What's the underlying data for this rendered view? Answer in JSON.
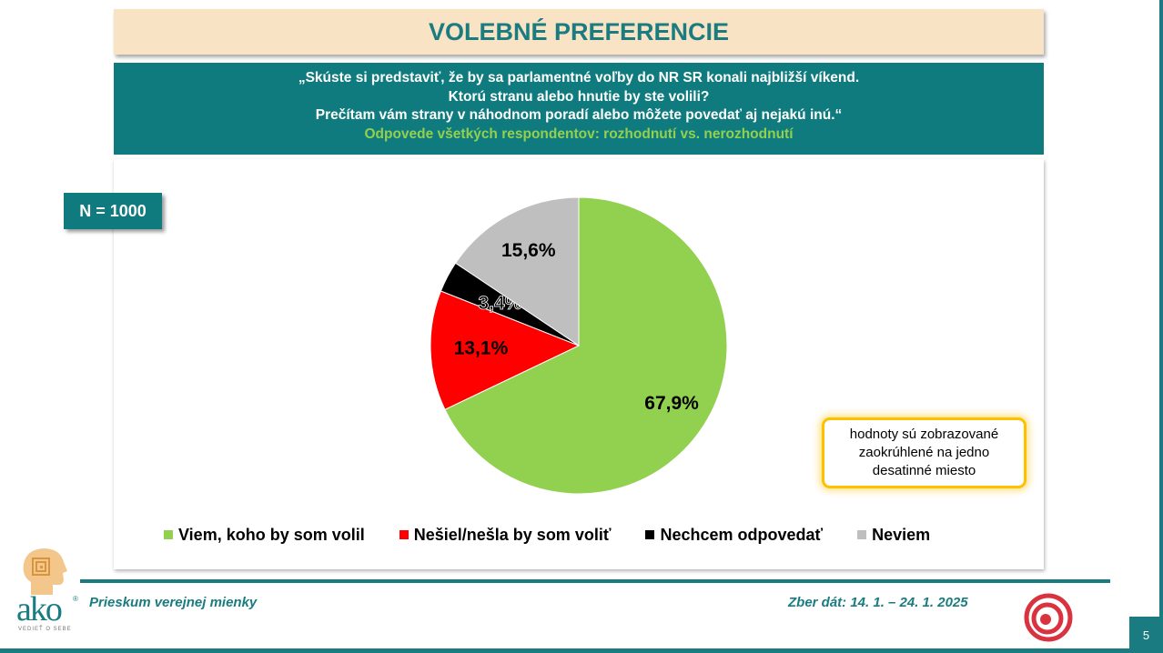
{
  "title": "VOLEBNÉ PREFERENCIE",
  "question": {
    "line1": "„Skúste si predstaviť, že by sa parlamentné voľby do NR SR konali najbližší víkend.",
    "line2": "Ktorú stranu alebo hnutie by ste volili?",
    "line3": "Prečítam vám strany v náhodnom poradí alebo môžete povedať aj nejakú inú.“",
    "subtitle": "Odpovede všetkých respondentov: rozhodnutí vs. nerozhodnutí"
  },
  "sample_size": "N = 1000",
  "note": "hodnoty sú zobrazované zaokrúhlené na jedno desatinné miesto",
  "footer": {
    "left": "Prieskum verejnej mienky",
    "right": "Zber dát: 14. 1. – 24. 1. 2025",
    "page_number": "5"
  },
  "logo": {
    "brand": "ako",
    "reg": "®",
    "tagline": "VEDIEŤ O SEBE",
    "ako_icon": "profile-head-maze-icon",
    "swirl_icon": "red-swirl-icon"
  },
  "chart_data": {
    "type": "pie",
    "title": "",
    "start_angle_deg": 0,
    "direction": "clockwise",
    "legend_position": "bottom",
    "slices": [
      {
        "label": "Viem, koho by som volil",
        "value": 67.9,
        "value_label": "67,9%",
        "color": "#92d050"
      },
      {
        "label": "Nešiel/nešla by som voliť",
        "value": 13.1,
        "value_label": "13,1%",
        "color": "#ff0000"
      },
      {
        "label": "Nechcem odpovedať",
        "value": 3.4,
        "value_label": "3,4%",
        "color": "#000000"
      },
      {
        "label": "Neviem",
        "value": 15.6,
        "value_label": "15,6%",
        "color": "#bfbfbf"
      }
    ]
  }
}
